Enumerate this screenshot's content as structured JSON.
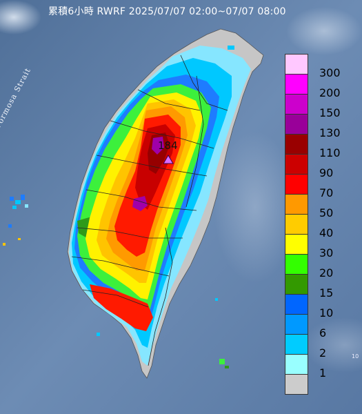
{
  "title": "累積6小時 RWRF 2025/07/07 02:00~07/07 08:00",
  "map_label": "Formosa Strait",
  "peak": {
    "value": "184"
  },
  "edge_note": "10",
  "legend": [
    {
      "label": "300",
      "color": "#ffc8ff"
    },
    {
      "label": "200",
      "color": "#ff00ff"
    },
    {
      "label": "150",
      "color": "#cc00cc"
    },
    {
      "label": "130",
      "color": "#990099"
    },
    {
      "label": "110",
      "color": "#990000"
    },
    {
      "label": "90",
      "color": "#cc0000"
    },
    {
      "label": "70",
      "color": "#ff0000"
    },
    {
      "label": "50",
      "color": "#ff9900"
    },
    {
      "label": "40",
      "color": "#ffcc00"
    },
    {
      "label": "30",
      "color": "#ffff00"
    },
    {
      "label": "20",
      "color": "#33ff00"
    },
    {
      "label": "15",
      "color": "#339900"
    },
    {
      "label": "10",
      "color": "#0066ff"
    },
    {
      "label": "6",
      "color": "#0099ff"
    },
    {
      "label": "2",
      "color": "#00ccff"
    },
    {
      "label": "1",
      "color": "#99ffff"
    },
    {
      "label": "",
      "color": "#cccccc"
    }
  ]
}
